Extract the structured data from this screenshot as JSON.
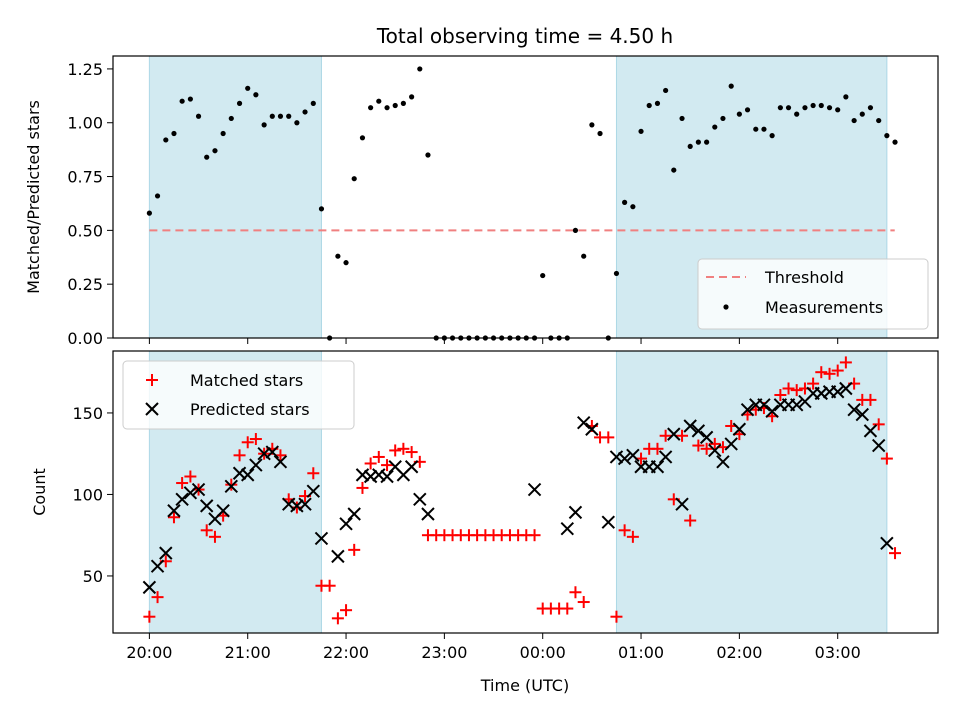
{
  "title": "Total observing time = 4.50 h",
  "colors": {
    "shade": "#add8e6",
    "threshold": "#f08080",
    "measurement": "#000000",
    "matched": "#ff0000",
    "predicted": "#000000"
  },
  "chart_data": [
    {
      "type": "scatter",
      "ylabel": "Matched/Predicted stars",
      "ylim": [
        0,
        1.31
      ],
      "xlim": [
        -0.37,
        8.02
      ],
      "yticks": [
        0,
        0.25,
        0.5,
        0.75,
        1.0,
        1.25
      ],
      "ytick_labels": [
        "0.00",
        "0.25",
        "0.50",
        "0.75",
        "1.00",
        "1.25"
      ],
      "shaded_spans": [
        [
          0.0,
          1.75
        ],
        [
          4.75,
          7.5
        ]
      ],
      "threshold": {
        "value": 0.5,
        "label": "Threshold",
        "x_range": [
          0.0,
          7.58
        ]
      },
      "legend": {
        "position": "lower-right",
        "entries": [
          "Threshold",
          "Measurements"
        ]
      },
      "series": [
        {
          "name": "Measurements",
          "x": [
            0.0,
            0.083,
            0.167,
            0.25,
            0.333,
            0.417,
            0.5,
            0.583,
            0.667,
            0.75,
            0.833,
            0.917,
            1.0,
            1.083,
            1.167,
            1.25,
            1.333,
            1.417,
            1.5,
            1.583,
            1.667,
            1.75,
            1.833,
            1.917,
            2.0,
            2.083,
            2.167,
            2.25,
            2.333,
            2.417,
            2.5,
            2.583,
            2.667,
            2.75,
            2.833,
            2.917,
            3.0,
            3.083,
            3.167,
            3.25,
            3.333,
            3.417,
            3.5,
            3.583,
            3.667,
            3.75,
            3.833,
            3.917,
            4.0,
            4.083,
            4.167,
            4.25,
            4.333,
            4.417,
            4.5,
            4.583,
            4.667,
            4.75,
            4.833,
            4.917,
            5.0,
            5.083,
            5.167,
            5.25,
            5.333,
            5.417,
            5.5,
            5.583,
            5.667,
            5.75,
            5.833,
            5.917,
            6.0,
            6.083,
            6.167,
            6.25,
            6.333,
            6.417,
            6.5,
            6.583,
            6.667,
            6.75,
            6.833,
            6.917,
            7.0,
            7.083,
            7.167,
            7.25,
            7.333,
            7.417,
            7.5,
            7.583
          ],
          "values": [
            0.58,
            0.66,
            0.92,
            0.95,
            1.1,
            1.11,
            1.03,
            0.84,
            0.87,
            0.95,
            1.02,
            1.09,
            1.16,
            1.13,
            0.99,
            1.03,
            1.03,
            1.03,
            1.0,
            1.05,
            1.09,
            0.6,
            0.0,
            0.38,
            0.35,
            0.74,
            0.93,
            1.07,
            1.1,
            1.07,
            1.08,
            1.09,
            1.12,
            1.25,
            0.85,
            0.0,
            0.0,
            0.0,
            0.0,
            0.0,
            0.0,
            0.0,
            0.0,
            0.0,
            0.0,
            0.0,
            0.0,
            0.0,
            0.29,
            0.0,
            0.0,
            0.0,
            0.5,
            0.38,
            0.99,
            0.95,
            0.0,
            0.3,
            0.63,
            0.61,
            0.96,
            1.08,
            1.09,
            1.15,
            0.78,
            1.02,
            0.89,
            0.91,
            0.91,
            0.98,
            1.02,
            1.17,
            1.04,
            1.06,
            0.97,
            0.97,
            0.94,
            1.07,
            1.07,
            1.04,
            1.07,
            1.08,
            1.08,
            1.07,
            1.06,
            1.12,
            1.01,
            1.04,
            1.07,
            1.01,
            0.94,
            0.91
          ]
        }
      ]
    },
    {
      "type": "scatter",
      "xlabel": "Time (UTC)",
      "ylabel": "Count",
      "ylim": [
        15,
        188
      ],
      "xlim": [
        -0.37,
        8.02
      ],
      "yticks": [
        50,
        100,
        150
      ],
      "ytick_labels": [
        "50",
        "100",
        "150"
      ],
      "xticks": [
        0,
        1,
        2,
        3,
        4,
        5,
        6,
        7
      ],
      "xtick_labels": [
        "20:00",
        "21:00",
        "22:00",
        "23:00",
        "00:00",
        "01:00",
        "02:00",
        "03:00"
      ],
      "shaded_spans": [
        [
          0.0,
          1.75
        ],
        [
          4.75,
          7.5
        ]
      ],
      "legend": {
        "position": "upper-left",
        "entries": [
          "Matched stars",
          "Predicted stars"
        ]
      },
      "series": [
        {
          "name": "Matched stars",
          "marker": "plus",
          "x": [
            0.0,
            0.083,
            0.167,
            0.25,
            0.333,
            0.417,
            0.5,
            0.583,
            0.667,
            0.75,
            0.833,
            0.917,
            1.0,
            1.083,
            1.167,
            1.25,
            1.333,
            1.417,
            1.5,
            1.583,
            1.667,
            1.75,
            1.833,
            1.917,
            2.0,
            2.083,
            2.167,
            2.25,
            2.333,
            2.417,
            2.5,
            2.583,
            2.667,
            2.75,
            2.833,
            2.917,
            3.0,
            3.083,
            3.167,
            3.25,
            3.333,
            3.417,
            3.5,
            3.583,
            3.667,
            3.75,
            3.833,
            3.917,
            4.0,
            4.083,
            4.167,
            4.25,
            4.333,
            4.417,
            4.5,
            4.583,
            4.667,
            4.75,
            4.833,
            4.917,
            5.0,
            5.083,
            5.167,
            5.25,
            5.333,
            5.417,
            5.5,
            5.583,
            5.667,
            5.75,
            5.833,
            5.917,
            6.0,
            6.083,
            6.167,
            6.25,
            6.333,
            6.417,
            6.5,
            6.583,
            6.667,
            6.75,
            6.833,
            6.917,
            7.0,
            7.083,
            7.167,
            7.25,
            7.333,
            7.417,
            7.5,
            7.583
          ],
          "values": [
            25,
            37,
            59,
            86,
            107,
            111,
            103,
            78,
            74,
            87,
            106,
            124,
            132,
            134,
            125,
            128,
            124,
            97,
            92,
            99,
            113,
            44,
            44,
            24,
            29,
            66,
            104,
            119,
            123,
            118,
            127,
            128,
            126,
            120,
            75,
            75,
            75,
            75,
            75,
            75,
            75,
            75,
            75,
            75,
            75,
            75,
            75,
            75,
            30,
            30,
            30,
            30,
            40,
            34,
            142,
            135,
            135,
            25,
            78,
            74,
            122,
            128,
            128,
            136,
            97,
            136,
            84,
            130,
            128,
            131,
            129,
            142,
            137,
            149,
            152,
            153,
            148,
            161,
            165,
            164,
            165,
            168,
            175,
            174,
            176,
            181,
            168,
            158,
            158,
            143,
            122,
            64
          ]
        },
        {
          "name": "Predicted stars",
          "marker": "x",
          "x": [
            0.0,
            0.083,
            0.167,
            0.25,
            0.333,
            0.417,
            0.5,
            0.583,
            0.667,
            0.75,
            0.833,
            0.917,
            1.0,
            1.083,
            1.167,
            1.25,
            1.333,
            1.417,
            1.5,
            1.583,
            1.667,
            1.75,
            1.917,
            2.0,
            2.083,
            2.167,
            2.25,
            2.333,
            2.417,
            2.5,
            2.583,
            2.667,
            2.75,
            2.833,
            3.917,
            4.25,
            4.333,
            4.417,
            4.5,
            4.667,
            4.75,
            4.833,
            4.917,
            5.0,
            5.083,
            5.167,
            5.25,
            5.333,
            5.417,
            5.5,
            5.583,
            5.667,
            5.75,
            5.833,
            5.917,
            6.0,
            6.083,
            6.167,
            6.25,
            6.333,
            6.417,
            6.5,
            6.583,
            6.667,
            6.75,
            6.833,
            6.917,
            7.0,
            7.083,
            7.167,
            7.25,
            7.333,
            7.417,
            7.5
          ],
          "values": [
            43,
            56,
            64,
            90,
            97,
            101,
            103,
            93,
            85,
            90,
            105,
            113,
            112,
            118,
            125,
            126,
            120,
            94,
            93,
            94,
            102,
            73,
            62,
            82,
            88,
            112,
            111,
            112,
            111,
            117,
            112,
            117,
            97,
            88,
            103,
            79,
            89,
            144,
            140,
            83,
            123,
            122,
            124,
            117,
            117,
            117,
            123,
            137,
            94,
            142,
            139,
            135,
            127,
            120,
            131,
            140,
            152,
            155,
            155,
            151,
            155,
            155,
            155,
            157,
            162,
            162,
            163,
            163,
            165,
            152,
            149,
            139,
            130,
            70
          ]
        }
      ]
    }
  ]
}
